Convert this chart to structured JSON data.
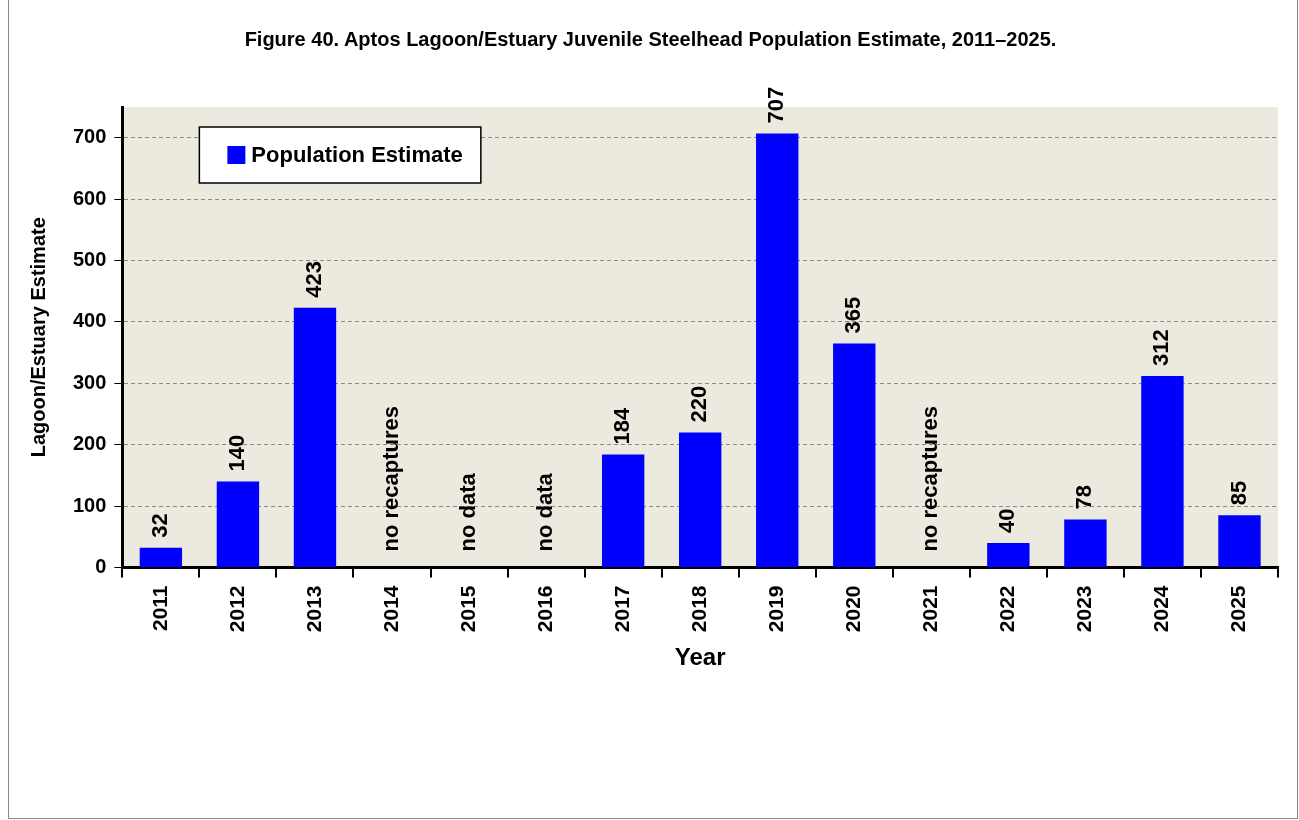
{
  "chart_data": {
    "type": "bar",
    "title": "Figure 40. Aptos Lagoon/Estuary Juvenile Steelhead Population Estimate, 2011–2025.",
    "xlabel": "Year",
    "ylabel": "Lagoon/Estuary Estimate",
    "categories": [
      "2011",
      "2012",
      "2013",
      "2014",
      "2015",
      "2016",
      "2017",
      "2018",
      "2019",
      "2020",
      "2021",
      "2022",
      "2023",
      "2024",
      "2025"
    ],
    "series": [
      {
        "name": "Population Estimate",
        "color": "#0000ff",
        "values": [
          32,
          140,
          423,
          null,
          null,
          null,
          184,
          220,
          707,
          365,
          null,
          40,
          78,
          312,
          85
        ],
        "value_labels": [
          "32",
          "140",
          "423",
          "no recaptures",
          "no data",
          "no data",
          "184",
          "220",
          "707",
          "365",
          "no recaptures",
          "40",
          "78",
          "312",
          "85"
        ]
      }
    ],
    "ylim": [
      0,
      750
    ],
    "yticks": [
      0,
      100,
      200,
      300,
      400,
      500,
      600,
      700
    ],
    "grid": "y",
    "legend": "top left"
  }
}
